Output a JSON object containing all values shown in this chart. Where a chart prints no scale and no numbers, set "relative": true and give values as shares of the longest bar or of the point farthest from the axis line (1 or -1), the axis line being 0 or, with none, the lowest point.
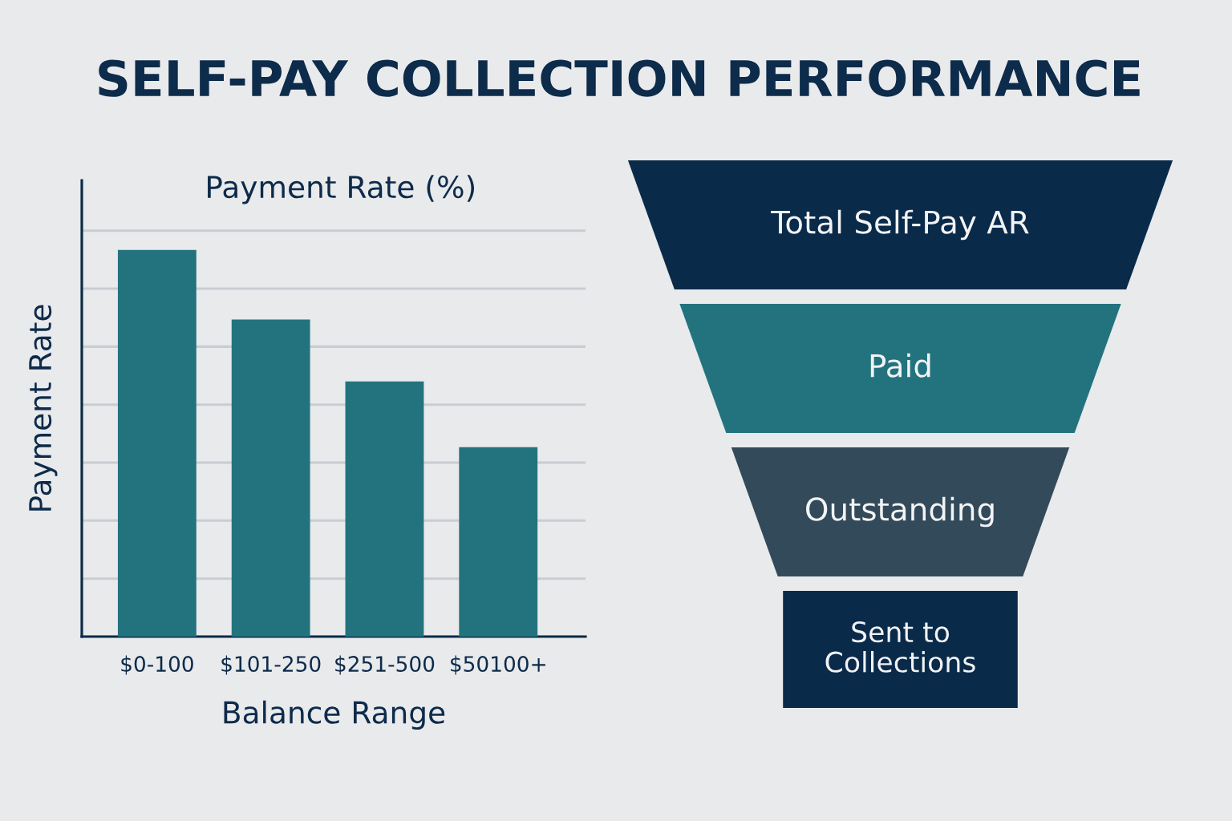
{
  "chart_data": [
    {
      "type": "bar",
      "title": "SELF-PAY COLLECTION PERFORMANCE",
      "subtitle": "Payment Rate (%)",
      "xlabel": "Balance Range",
      "ylabel": "Payment Rate",
      "categories": [
        "$0-100",
        "$101-250",
        "$251-500",
        "$50100+"
      ],
      "values": [
        1,
        0.82,
        0.66,
        0.49
      ],
      "color": "#22737e",
      "relative": true,
      "grid": "y"
    },
    {
      "type": "other",
      "categories": [
        "Total Self-Pay AR",
        "Paid",
        "Outstanding",
        "Sent to\nCollections"
      ],
      "colors": [
        "#0a2a4a",
        "#22737e",
        "#334a5a",
        "#0a2a4a"
      ]
    }
  ]
}
